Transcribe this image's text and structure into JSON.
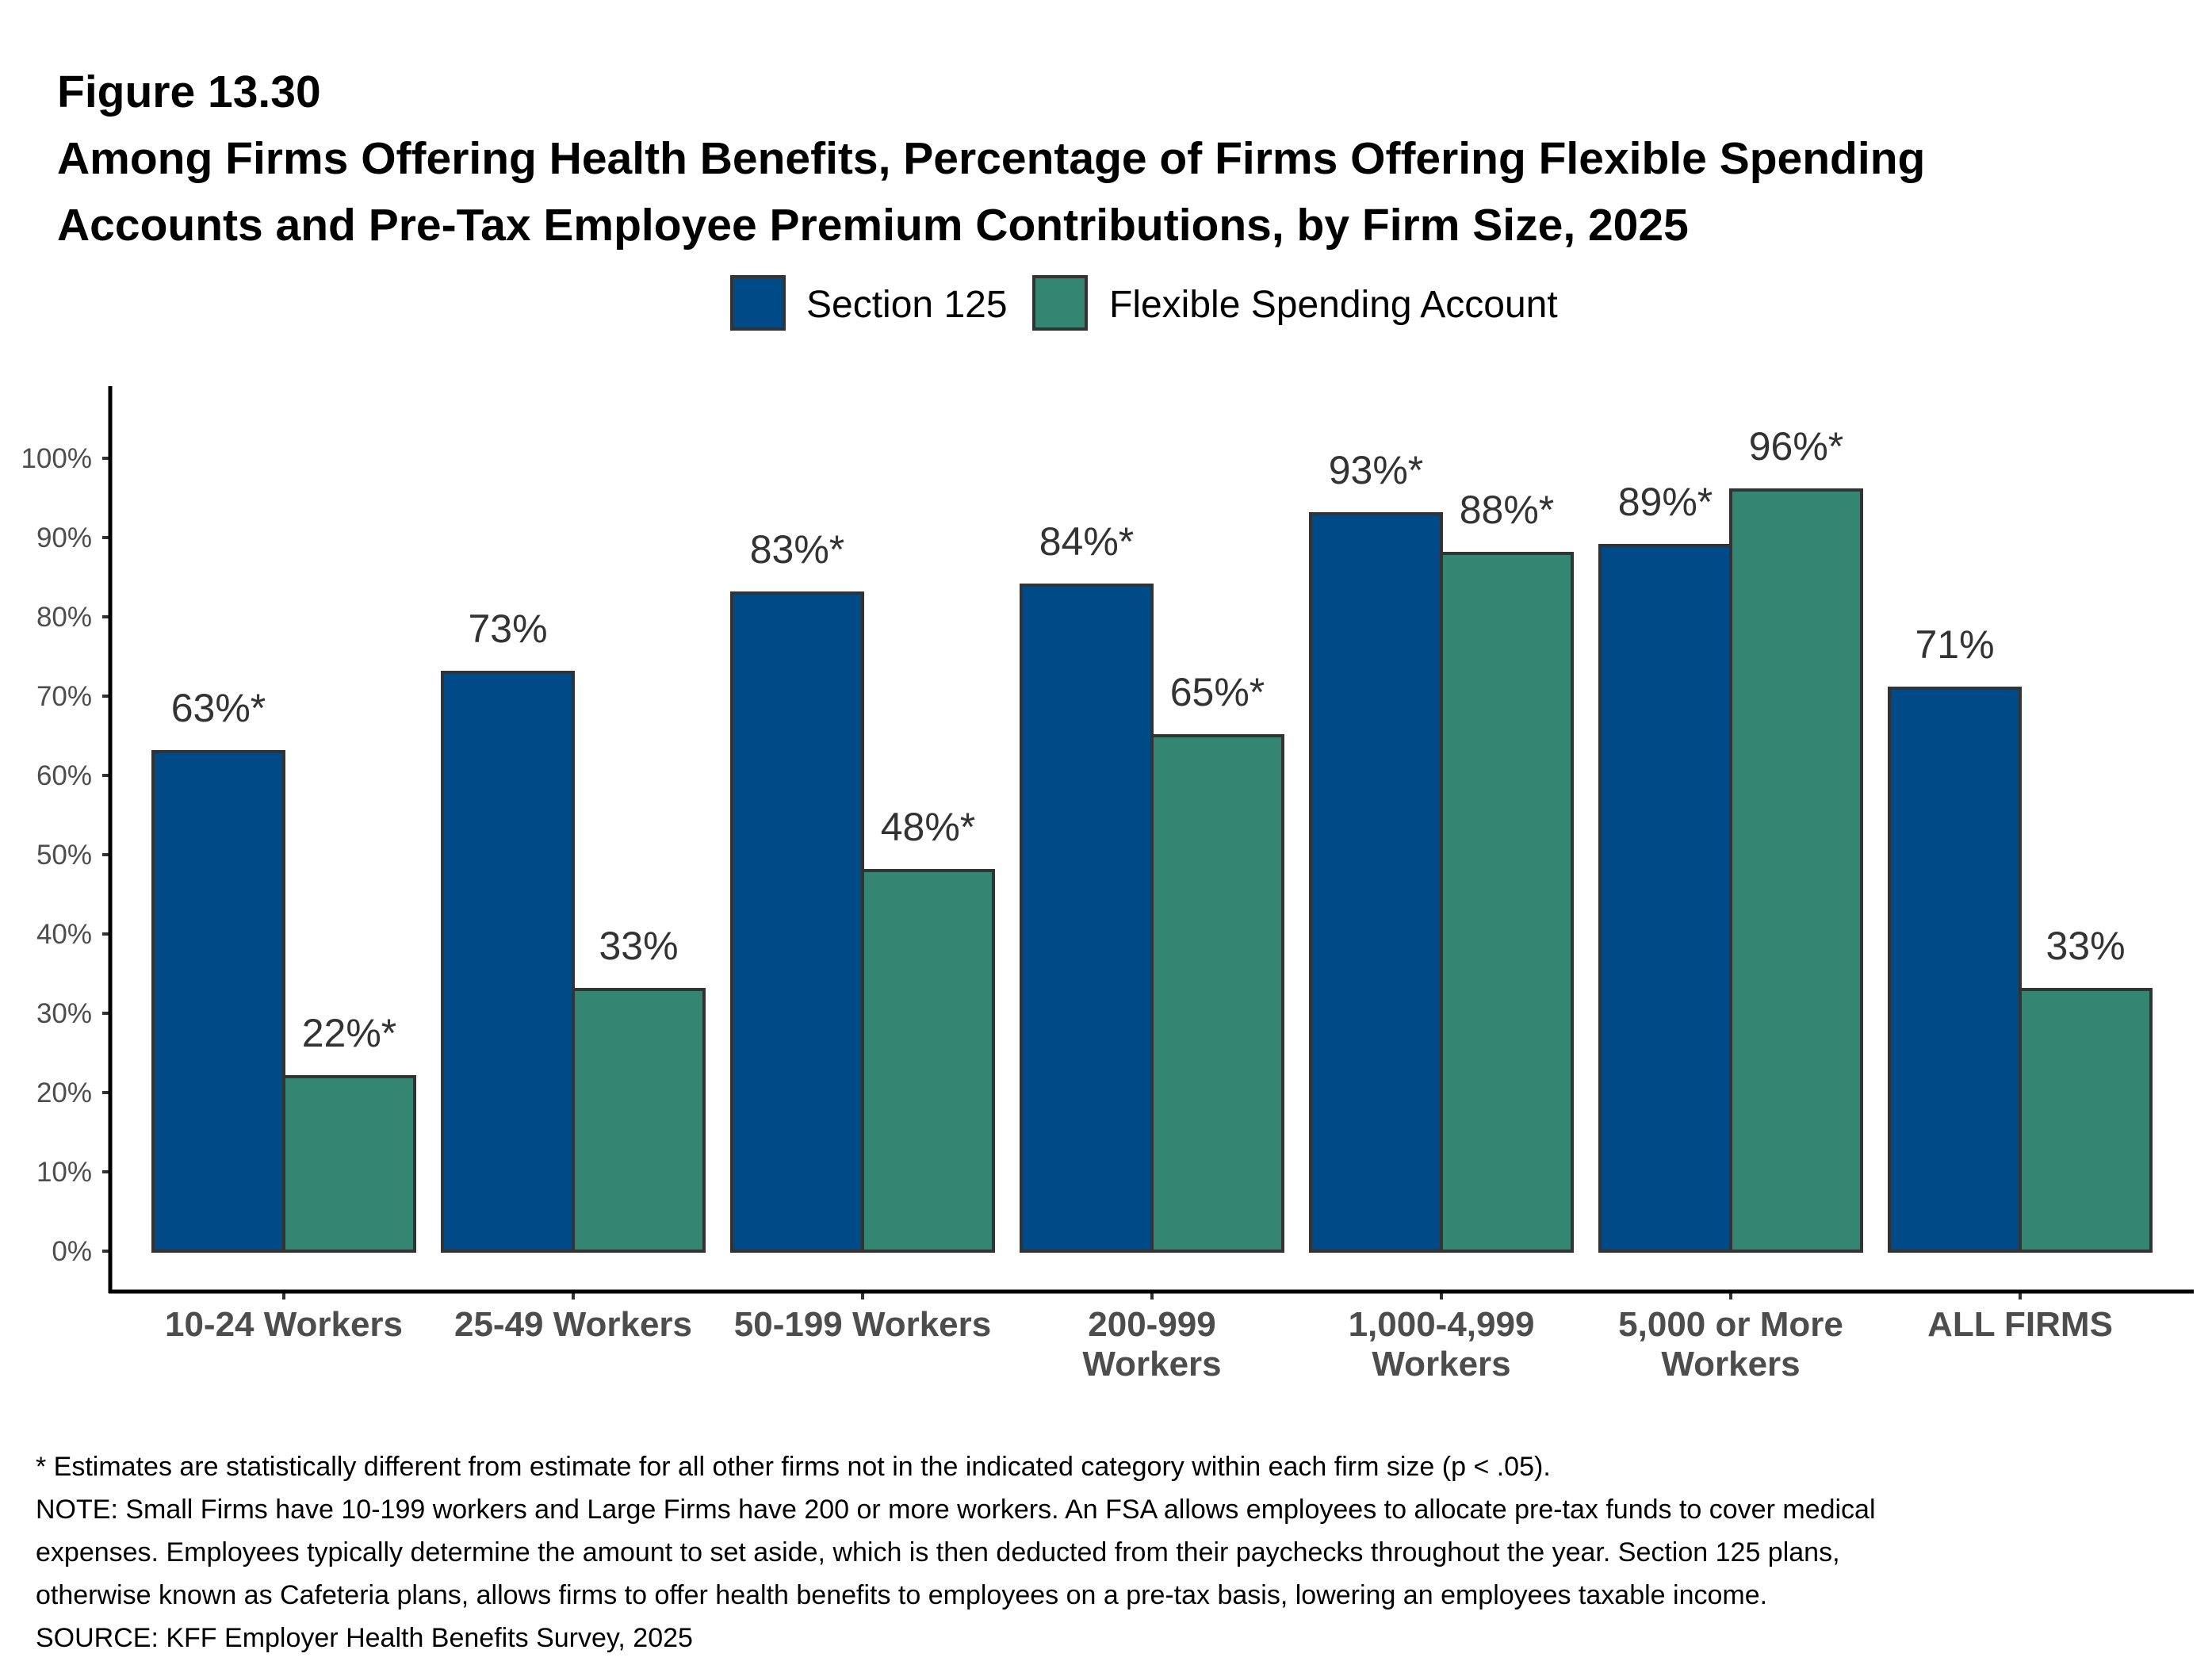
{
  "figure": {
    "number": "Figure 13.30",
    "title_lines": [
      "Among Firms Offering Health Benefits, Percentage of Firms Offering Flexible Spending",
      "Accounts and Pre-Tax Employee Premium Contributions, by Firm Size, 2025"
    ]
  },
  "chart_data": {
    "type": "bar",
    "title": "Among Firms Offering Health Benefits, Percentage of Firms Offering Flexible Spending Accounts and Pre-Tax Employee Premium Contributions, by Firm Size, 2025",
    "xlabel": "",
    "ylabel": "",
    "ylim": [
      0,
      100
    ],
    "yticks": [
      0,
      10,
      20,
      30,
      40,
      50,
      60,
      70,
      80,
      90,
      100
    ],
    "ytick_labels": [
      "0%",
      "10%",
      "20%",
      "30%",
      "40%",
      "50%",
      "60%",
      "70%",
      "80%",
      "90%",
      "100%"
    ],
    "grid": false,
    "legend_position": "top-center",
    "categories": [
      [
        "10-24 Workers"
      ],
      [
        "25-49 Workers"
      ],
      [
        "50-199 Workers"
      ],
      [
        "200-999",
        "Workers"
      ],
      [
        "1,000-4,999",
        "Workers"
      ],
      [
        "5,000 or More",
        "Workers"
      ],
      [
        "ALL FIRMS"
      ]
    ],
    "series": [
      {
        "name": "Section 125",
        "color": "#004a87",
        "values": [
          63,
          73,
          83,
          84,
          93,
          89,
          71
        ],
        "labels": [
          "63%*",
          "73%",
          "83%*",
          "84%*",
          "93%*",
          "89%*",
          "71%"
        ]
      },
      {
        "name": "Flexible Spending Account",
        "color": "#348673",
        "values": [
          22,
          33,
          48,
          65,
          88,
          96,
          33
        ],
        "labels": [
          "22%*",
          "33%",
          "48%*",
          "65%*",
          "88%*",
          "96%*",
          "33%"
        ]
      }
    ],
    "bar_border_color": "#333333"
  },
  "footnotes": [
    "* Estimates are statistically different from estimate for all other firms not in the indicated category within each firm size (p < .05).",
    "NOTE: Small Firms have 10-199 workers and Large Firms have 200 or more workers.  An FSA allows employees to allocate pre-tax funds to cover medical",
    "expenses. Employees typically determine the amount to set aside, which is then deducted from their paychecks throughout the year. Section 125 plans,",
    "otherwise known as Cafeteria plans, allows firms to offer health benefits to employees on a pre-tax basis, lowering an employees taxable income.",
    "SOURCE: KFF Employer Health Benefits Survey, 2025"
  ]
}
